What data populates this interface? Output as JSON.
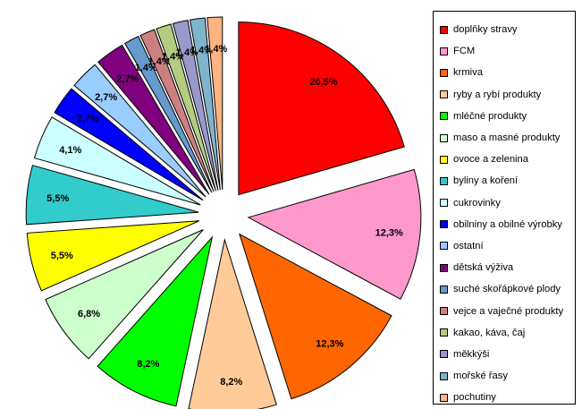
{
  "chart_data": {
    "type": "pie",
    "exploded": true,
    "title": "",
    "categories": [
      "doplňky stravy",
      "FCM",
      "krmiva",
      "ryby a rybí produkty",
      "mléčné produkty",
      "maso a masné produkty",
      "ovoce a zelenina",
      "byliny a koření",
      "cukrovinky",
      "obilniny a obilné výrobky",
      "ostatní",
      "dětská výživa",
      "suché skořápkové plody",
      "vejce a vaječné produkty",
      "kakao, káva, čaj",
      "měkkýši",
      "mořské řasy",
      "pochutiny"
    ],
    "values": [
      20.5,
      12.3,
      12.3,
      8.2,
      8.2,
      6.8,
      5.5,
      5.5,
      4.1,
      2.7,
      2.7,
      2.7,
      1.4,
      1.4,
      1.4,
      1.4,
      1.4,
      1.4
    ],
    "labels": [
      "20,5%",
      "12,3%",
      "12,3%",
      "8,2%",
      "8,2%",
      "6,8%",
      "5,5%",
      "5,5%",
      "4,1%",
      "2,7%",
      "2,7%",
      "2,7%",
      "1,4%",
      "1,4%",
      "1,4%",
      "1,4%",
      "1,4%",
      "1,4%"
    ],
    "colors": [
      "#FF0000",
      "#FF99CC",
      "#FF6600",
      "#FFCC99",
      "#00FF00",
      "#CCFFCC",
      "#FFFF00",
      "#33CCCC",
      "#CCFFFF",
      "#0000FF",
      "#99CCFF",
      "#800080",
      "#6699CC",
      "#CC8080",
      "#B3CC80",
      "#9999CC",
      "#80B3CC",
      "#FFB380"
    ],
    "legend_position": "right"
  }
}
